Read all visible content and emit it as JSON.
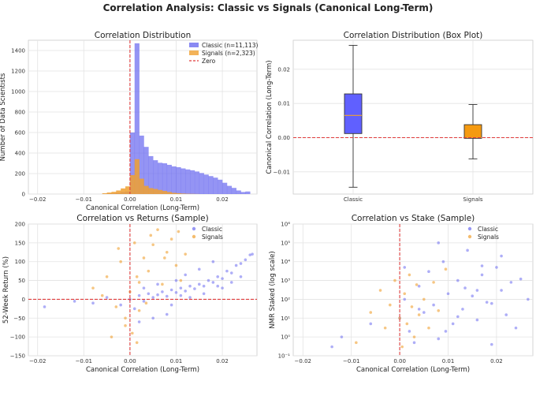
{
  "figure": {
    "title": "Correlation Analysis: Classic vs Signals (Canonical Long-Term)"
  },
  "colors": {
    "classic": "#6b6bf0",
    "signals": "#f0a030",
    "zero": "#e03b3b",
    "box_classic": "#6060ff",
    "box_signals": "#f59a10"
  },
  "chart_data": [
    {
      "id": "hist",
      "type": "bar",
      "title": "Correlation Distribution",
      "xlabel": "Canonical Correlation (Long-Term)",
      "ylabel": "Number of Data Scientists",
      "xlim": [
        -0.022,
        0.0275
      ],
      "ylim": [
        0,
        1500
      ],
      "xticks": [
        -0.02,
        -0.01,
        0.0,
        0.01,
        0.02
      ],
      "xtick_labels": [
        "−0.02",
        "−0.01",
        "0.00",
        "0.01",
        "0.02"
      ],
      "yticks": [
        0,
        200,
        400,
        600,
        800,
        1000,
        1200,
        1400
      ],
      "ytick_labels": [
        "0",
        "200",
        "400",
        "600",
        "800",
        "1000",
        "1200",
        "1400"
      ],
      "grid": true,
      "legend_position": "top-right",
      "legend": [
        "Classic (n=11,113)",
        "Signals (n=2,323)",
        "Zero"
      ],
      "series": [
        {
          "name": "Classic (n=11,113)",
          "bin_start": -0.006,
          "bin_width": 0.001,
          "counts": [
            2,
            5,
            8,
            12,
            20,
            25,
            600,
            1470,
            570,
            460,
            370,
            330,
            305,
            300,
            285,
            270,
            262,
            250,
            240,
            232,
            220,
            205,
            190,
            175,
            160,
            140,
            110,
            80,
            60,
            35,
            20,
            25
          ]
        },
        {
          "name": "Signals (n=2,323)",
          "bin_start": -0.006,
          "bin_width": 0.001,
          "counts": [
            8,
            15,
            22,
            35,
            55,
            75,
            185,
            340,
            150,
            80,
            58,
            50,
            40,
            30,
            20,
            12,
            8,
            5,
            3,
            2,
            1,
            0,
            0,
            0,
            0,
            0,
            0,
            0,
            0,
            0,
            0,
            0
          ]
        }
      ]
    },
    {
      "id": "box",
      "type": "box",
      "title": "Correlation Distribution (Box Plot)",
      "ylabel": "Canonical Correlation (Long-Term)",
      "ylim": [
        -0.0165,
        0.0285
      ],
      "yticks": [
        -0.01,
        0.0,
        0.01,
        0.02
      ],
      "ytick_labels": [
        "−0.01",
        "0.00",
        "0.01",
        "0.02"
      ],
      "categories": [
        "Classic",
        "Signals"
      ],
      "boxes": [
        {
          "name": "Classic",
          "whisker_low": -0.0145,
          "q1": 0.0012,
          "median": 0.0065,
          "q3": 0.0128,
          "whisker_high": 0.027
        },
        {
          "name": "Signals",
          "whisker_low": -0.0062,
          "q1": -0.0002,
          "median": 0.0,
          "q3": 0.0038,
          "whisker_high": 0.0097
        }
      ]
    },
    {
      "id": "returns",
      "type": "scatter",
      "title": "Correlation vs Returns (Sample)",
      "xlabel": "Canonical Correlation (Long-Term)",
      "ylabel": "52-Week Return (%)",
      "xlim": [
        -0.022,
        0.0275
      ],
      "ylim": [
        -150,
        200
      ],
      "xticks": [
        -0.02,
        -0.01,
        0.0,
        0.01,
        0.02
      ],
      "xtick_labels": [
        "−0.02",
        "−0.01",
        "0.00",
        "0.01",
        "0.02"
      ],
      "yticks": [
        -150,
        -100,
        -50,
        0,
        50,
        100,
        150,
        200
      ],
      "ytick_labels": [
        "−150",
        "−100",
        "−50",
        "0",
        "50",
        "100",
        "150",
        "200"
      ],
      "legend_position": "top-right",
      "legend": [
        "Classic",
        "Signals"
      ],
      "series": [
        {
          "name": "Classic",
          "points": [
            [
              -0.0185,
              -20
            ],
            [
              -0.012,
              -5
            ],
            [
              -0.008,
              -10
            ],
            [
              -0.005,
              5
            ],
            [
              -0.002,
              -15
            ],
            [
              0.0,
              0
            ],
            [
              0.001,
              -25
            ],
            [
              0.002,
              10
            ],
            [
              0.003,
              -5
            ],
            [
              0.004,
              15
            ],
            [
              0.005,
              5
            ],
            [
              0.006,
              12
            ],
            [
              0.007,
              20
            ],
            [
              0.008,
              8
            ],
            [
              0.009,
              25
            ],
            [
              0.01,
              18
            ],
            [
              0.011,
              30
            ],
            [
              0.012,
              22
            ],
            [
              0.013,
              35
            ],
            [
              0.014,
              28
            ],
            [
              0.015,
              40
            ],
            [
              0.016,
              35
            ],
            [
              0.017,
              50
            ],
            [
              0.018,
              45
            ],
            [
              0.019,
              60
            ],
            [
              0.02,
              55
            ],
            [
              0.021,
              75
            ],
            [
              0.022,
              70
            ],
            [
              0.023,
              90
            ],
            [
              0.024,
              95
            ],
            [
              0.025,
              105
            ],
            [
              0.0265,
              120
            ],
            [
              0.026,
              118
            ],
            [
              0.012,
              65
            ],
            [
              0.015,
              80
            ],
            [
              0.008,
              -40
            ],
            [
              0.005,
              -50
            ],
            [
              0.01,
              50
            ],
            [
              0.018,
              100
            ],
            [
              0.002,
              -60
            ],
            [
              0.019,
              35
            ],
            [
              0.022,
              45
            ],
            [
              0.016,
              15
            ],
            [
              0.013,
              5
            ],
            [
              0.02,
              30
            ],
            [
              0.024,
              60
            ],
            [
              0.011,
              10
            ],
            [
              0.006,
              40
            ],
            [
              0.003,
              30
            ],
            [
              0.009,
              -15
            ]
          ]
        },
        {
          "name": "Signals",
          "points": [
            [
              -0.008,
              30
            ],
            [
              -0.005,
              60
            ],
            [
              -0.003,
              -20
            ],
            [
              -0.002,
              100
            ],
            [
              -0.001,
              -50
            ],
            [
              0.0,
              20
            ],
            [
              0.0005,
              -90
            ],
            [
              0.001,
              150
            ],
            [
              0.0015,
              60
            ],
            [
              0.002,
              -30
            ],
            [
              0.003,
              110
            ],
            [
              0.004,
              75
            ],
            [
              0.005,
              145
            ],
            [
              0.006,
              185
            ],
            [
              0.007,
              40
            ],
            [
              0.008,
              125
            ],
            [
              0.009,
              160
            ],
            [
              0.01,
              90
            ],
            [
              0.011,
              50
            ],
            [
              0.012,
              120
            ],
            [
              -0.004,
              -100
            ],
            [
              -0.006,
              10
            ],
            [
              -0.001,
              -70
            ],
            [
              0.002,
              45
            ],
            [
              0.0035,
              -10
            ],
            [
              0.0045,
              170
            ],
            [
              0.0075,
              110
            ],
            [
              0.0015,
              -115
            ],
            [
              -0.0025,
              135
            ],
            [
              0.0105,
              180
            ]
          ]
        }
      ]
    },
    {
      "id": "stake",
      "type": "scatter",
      "title": "Correlation vs Stake (Sample)",
      "xlabel": "Canonical Correlation (Long-Term)",
      "ylabel": "NMR Staked (log scale)",
      "xlim": [
        -0.022,
        0.0275
      ],
      "ylim": [
        0.1,
        1000000
      ],
      "log_y": true,
      "xticks": [
        -0.02,
        -0.01,
        0.0,
        0.01,
        0.02
      ],
      "xtick_labels": [
        "−0.02",
        "−0.01",
        "0.00",
        "0.01",
        "0.02"
      ],
      "yticks": [
        0.1,
        1,
        10,
        100,
        1000,
        10000,
        100000,
        1000000
      ],
      "ytick_labels": [
        "10⁻¹",
        "10⁰",
        "10¹",
        "10²",
        "10³",
        "10⁴",
        "10⁵",
        "10⁶"
      ],
      "legend_position": "top-right",
      "legend": [
        "Classic",
        "Signals"
      ],
      "series": [
        {
          "name": "Classic",
          "points": [
            [
              -0.014,
              0.3
            ],
            [
              -0.012,
              1
            ],
            [
              -0.006,
              5
            ],
            [
              0.0,
              10
            ],
            [
              0.001,
              100
            ],
            [
              0.002,
              2
            ],
            [
              0.003,
              0.5
            ],
            [
              0.004,
              500
            ],
            [
              0.005,
              20
            ],
            [
              0.006,
              3000
            ],
            [
              0.007,
              50
            ],
            [
              0.008,
              0.8
            ],
            [
              0.009,
              10000
            ],
            [
              0.01,
              200
            ],
            [
              0.011,
              5
            ],
            [
              0.012,
              1000
            ],
            [
              0.013,
              30
            ],
            [
              0.014,
              40000
            ],
            [
              0.015,
              150
            ],
            [
              0.016,
              8
            ],
            [
              0.017,
              2000
            ],
            [
              0.018,
              70
            ],
            [
              0.019,
              0.4
            ],
            [
              0.02,
              5000
            ],
            [
              0.021,
              300
            ],
            [
              0.022,
              15
            ],
            [
              0.023,
              800
            ],
            [
              0.024,
              3
            ],
            [
              0.025,
              1200
            ],
            [
              0.0265,
              100
            ],
            [
              0.008,
              100000
            ],
            [
              0.017,
              6000
            ],
            [
              0.004,
              30
            ],
            [
              0.012,
              12
            ],
            [
              0.016,
              300
            ],
            [
              0.021,
              20000
            ],
            [
              0.001,
              5000
            ],
            [
              0.0095,
              2
            ],
            [
              0.0135,
              400
            ],
            [
              0.019,
              60
            ]
          ]
        },
        {
          "name": "Signals",
          "points": [
            [
              -0.009,
              0.5
            ],
            [
              -0.006,
              20
            ],
            [
              -0.004,
              300
            ],
            [
              -0.003,
              3
            ],
            [
              -0.002,
              50
            ],
            [
              -0.001,
              1000
            ],
            [
              0.0,
              10
            ],
            [
              0.0005,
              0.3
            ],
            [
              0.001,
              200
            ],
            [
              0.0015,
              5
            ],
            [
              0.002,
              2000
            ],
            [
              0.0025,
              40
            ],
            [
              0.003,
              1
            ],
            [
              0.0035,
              600
            ],
            [
              0.004,
              15
            ],
            [
              0.005,
              100
            ],
            [
              0.006,
              3
            ],
            [
              0.007,
              800
            ],
            [
              0.008,
              25
            ],
            [
              0.0095,
              4000
            ]
          ]
        }
      ]
    }
  ]
}
